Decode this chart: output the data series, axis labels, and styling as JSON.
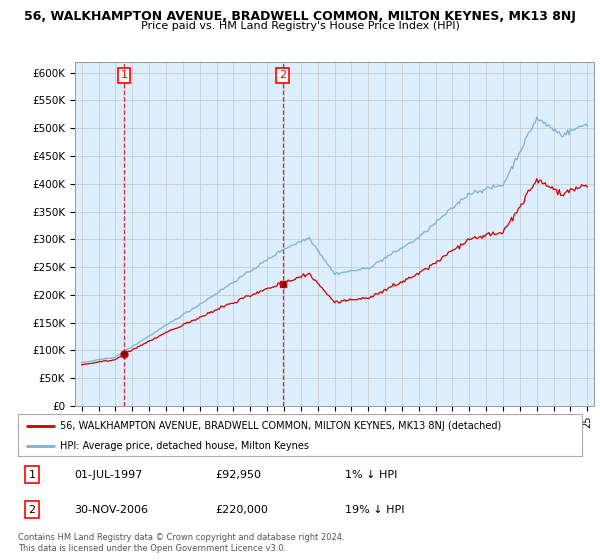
{
  "title": "56, WALKHAMPTON AVENUE, BRADWELL COMMON, MILTON KEYNES, MK13 8NJ",
  "subtitle": "Price paid vs. HM Land Registry's House Price Index (HPI)",
  "ylabel_ticks": [
    "£0",
    "£50K",
    "£100K",
    "£150K",
    "£200K",
    "£250K",
    "£300K",
    "£350K",
    "£400K",
    "£450K",
    "£500K",
    "£550K",
    "£600K"
  ],
  "ylim": [
    0,
    620000
  ],
  "yticks": [
    0,
    50000,
    100000,
    150000,
    200000,
    250000,
    300000,
    350000,
    400000,
    450000,
    500000,
    550000,
    600000
  ],
  "hpi_color": "#7ab3d9",
  "price_color": "#cc0000",
  "plot_bg_color": "#ddeeff",
  "legend_label1": "56, WALKHAMPTON AVENUE, BRADWELL COMMON, MILTON KEYNES, MK13 8NJ (detached)",
  "legend_label2": "HPI: Average price, detached house, Milton Keynes",
  "table_row1": [
    "1",
    "01-JUL-1997",
    "£92,950",
    "1% ↓ HPI"
  ],
  "table_row2": [
    "2",
    "30-NOV-2006",
    "£220,000",
    "19% ↓ HPI"
  ],
  "footer": "Contains HM Land Registry data © Crown copyright and database right 2024.\nThis data is licensed under the Open Government Licence v3.0.",
  "background_color": "#ffffff",
  "grid_color": "#cccccc",
  "transaction1_year": 1997.5,
  "transaction1_price": 92950,
  "transaction2_year": 2006.92,
  "transaction2_price": 220000
}
